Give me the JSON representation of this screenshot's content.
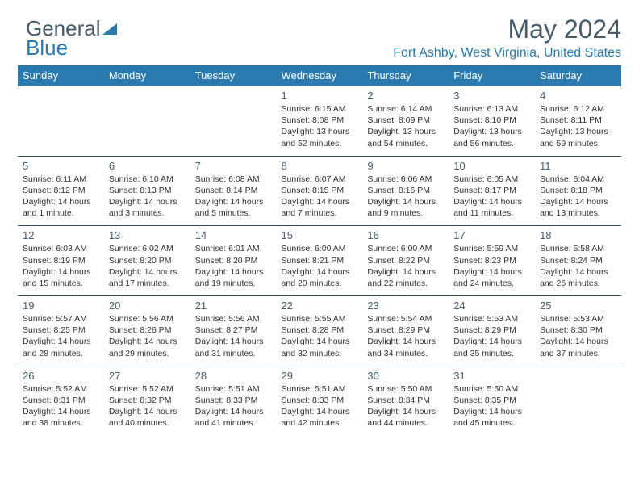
{
  "logo": {
    "part1": "General",
    "part2": "Blue"
  },
  "title": "May 2024",
  "location": "Fort Ashby, West Virginia, United States",
  "colors": {
    "header_bg": "#2a7ab0",
    "header_text": "#ffffff",
    "border": "#344a5e",
    "title_text": "#4a5b6a",
    "location_text": "#2a7ab0",
    "body_text": "#333333",
    "background": "#ffffff"
  },
  "weekdays": [
    "Sunday",
    "Monday",
    "Tuesday",
    "Wednesday",
    "Thursday",
    "Friday",
    "Saturday"
  ],
  "weeks": [
    [
      null,
      null,
      null,
      {
        "n": "1",
        "sr": "6:15 AM",
        "ss": "8:08 PM",
        "dl": "13 hours and 52 minutes."
      },
      {
        "n": "2",
        "sr": "6:14 AM",
        "ss": "8:09 PM",
        "dl": "13 hours and 54 minutes."
      },
      {
        "n": "3",
        "sr": "6:13 AM",
        "ss": "8:10 PM",
        "dl": "13 hours and 56 minutes."
      },
      {
        "n": "4",
        "sr": "6:12 AM",
        "ss": "8:11 PM",
        "dl": "13 hours and 59 minutes."
      }
    ],
    [
      {
        "n": "5",
        "sr": "6:11 AM",
        "ss": "8:12 PM",
        "dl": "14 hours and 1 minute."
      },
      {
        "n": "6",
        "sr": "6:10 AM",
        "ss": "8:13 PM",
        "dl": "14 hours and 3 minutes."
      },
      {
        "n": "7",
        "sr": "6:08 AM",
        "ss": "8:14 PM",
        "dl": "14 hours and 5 minutes."
      },
      {
        "n": "8",
        "sr": "6:07 AM",
        "ss": "8:15 PM",
        "dl": "14 hours and 7 minutes."
      },
      {
        "n": "9",
        "sr": "6:06 AM",
        "ss": "8:16 PM",
        "dl": "14 hours and 9 minutes."
      },
      {
        "n": "10",
        "sr": "6:05 AM",
        "ss": "8:17 PM",
        "dl": "14 hours and 11 minutes."
      },
      {
        "n": "11",
        "sr": "6:04 AM",
        "ss": "8:18 PM",
        "dl": "14 hours and 13 minutes."
      }
    ],
    [
      {
        "n": "12",
        "sr": "6:03 AM",
        "ss": "8:19 PM",
        "dl": "14 hours and 15 minutes."
      },
      {
        "n": "13",
        "sr": "6:02 AM",
        "ss": "8:20 PM",
        "dl": "14 hours and 17 minutes."
      },
      {
        "n": "14",
        "sr": "6:01 AM",
        "ss": "8:20 PM",
        "dl": "14 hours and 19 minutes."
      },
      {
        "n": "15",
        "sr": "6:00 AM",
        "ss": "8:21 PM",
        "dl": "14 hours and 20 minutes."
      },
      {
        "n": "16",
        "sr": "6:00 AM",
        "ss": "8:22 PM",
        "dl": "14 hours and 22 minutes."
      },
      {
        "n": "17",
        "sr": "5:59 AM",
        "ss": "8:23 PM",
        "dl": "14 hours and 24 minutes."
      },
      {
        "n": "18",
        "sr": "5:58 AM",
        "ss": "8:24 PM",
        "dl": "14 hours and 26 minutes."
      }
    ],
    [
      {
        "n": "19",
        "sr": "5:57 AM",
        "ss": "8:25 PM",
        "dl": "14 hours and 28 minutes."
      },
      {
        "n": "20",
        "sr": "5:56 AM",
        "ss": "8:26 PM",
        "dl": "14 hours and 29 minutes."
      },
      {
        "n": "21",
        "sr": "5:56 AM",
        "ss": "8:27 PM",
        "dl": "14 hours and 31 minutes."
      },
      {
        "n": "22",
        "sr": "5:55 AM",
        "ss": "8:28 PM",
        "dl": "14 hours and 32 minutes."
      },
      {
        "n": "23",
        "sr": "5:54 AM",
        "ss": "8:29 PM",
        "dl": "14 hours and 34 minutes."
      },
      {
        "n": "24",
        "sr": "5:53 AM",
        "ss": "8:29 PM",
        "dl": "14 hours and 35 minutes."
      },
      {
        "n": "25",
        "sr": "5:53 AM",
        "ss": "8:30 PM",
        "dl": "14 hours and 37 minutes."
      }
    ],
    [
      {
        "n": "26",
        "sr": "5:52 AM",
        "ss": "8:31 PM",
        "dl": "14 hours and 38 minutes."
      },
      {
        "n": "27",
        "sr": "5:52 AM",
        "ss": "8:32 PM",
        "dl": "14 hours and 40 minutes."
      },
      {
        "n": "28",
        "sr": "5:51 AM",
        "ss": "8:33 PM",
        "dl": "14 hours and 41 minutes."
      },
      {
        "n": "29",
        "sr": "5:51 AM",
        "ss": "8:33 PM",
        "dl": "14 hours and 42 minutes."
      },
      {
        "n": "30",
        "sr": "5:50 AM",
        "ss": "8:34 PM",
        "dl": "14 hours and 44 minutes."
      },
      {
        "n": "31",
        "sr": "5:50 AM",
        "ss": "8:35 PM",
        "dl": "14 hours and 45 minutes."
      },
      null
    ]
  ],
  "labels": {
    "sunrise": "Sunrise:",
    "sunset": "Sunset:",
    "daylight": "Daylight:"
  }
}
